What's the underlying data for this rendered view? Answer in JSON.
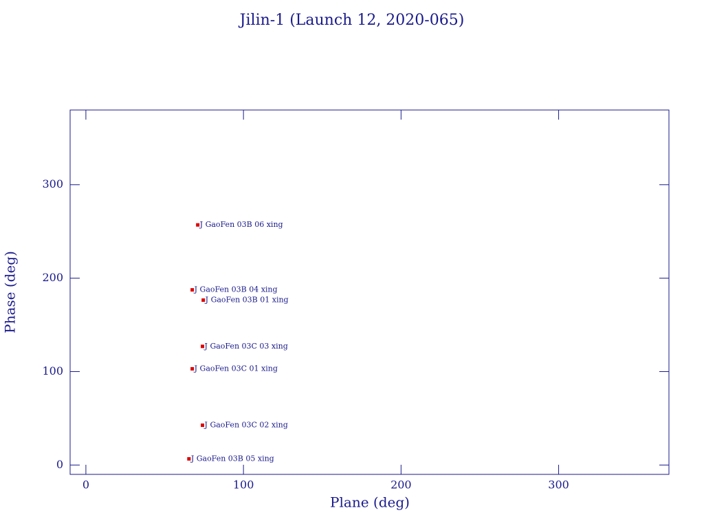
{
  "chart_data": {
    "type": "scatter",
    "title": "Jilin-1 (Launch 12, 2020-065)",
    "x_label": "Plane (deg)",
    "y_label": "Phase (deg)",
    "xlim": [
      -10,
      370
    ],
    "ylim": [
      -10,
      380
    ],
    "xticks": [
      0,
      100,
      200,
      300
    ],
    "yticks": [
      0,
      100,
      200,
      300
    ],
    "color": "#dd0000",
    "series": [
      {
        "name": null,
        "x": [
          71,
          67.5,
          74.5,
          74,
          67.5,
          74,
          65.4
        ],
        "values": [
          257,
          187.5,
          176.5,
          127,
          103,
          42.6,
          6.6
        ],
        "labels": [
          "J GaoFen 03B 06 xing",
          "J GaoFen 03B 04 xing",
          "J GaoFen 03B 01 xing",
          "J GaoFen 03C 03 xing",
          "J GaoFen 03C 01 xing",
          "J GaoFen 03C 02 xing",
          "J GaoFen 03B 05 xing"
        ]
      }
    ]
  }
}
